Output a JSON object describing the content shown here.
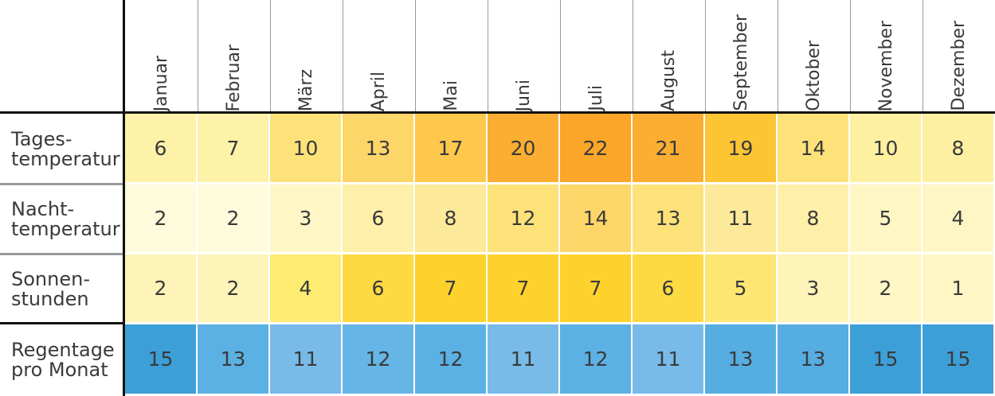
{
  "chart_data": {
    "type": "table",
    "columns": [
      "Januar",
      "Februar",
      "März",
      "April",
      "Mai",
      "Juni",
      "Juli",
      "August",
      "September",
      "Oktober",
      "November",
      "Dezember"
    ],
    "rows": [
      {
        "label": [
          "Tages-",
          "temperatur"
        ],
        "values": [
          6,
          7,
          10,
          13,
          17,
          20,
          22,
          21,
          19,
          14,
          10,
          8
        ]
      },
      {
        "label": [
          "Nacht-",
          "temperatur"
        ],
        "values": [
          2,
          2,
          3,
          6,
          8,
          12,
          14,
          13,
          11,
          8,
          5,
          4
        ]
      },
      {
        "label": [
          "Sonnen-",
          "stunden"
        ],
        "values": [
          2,
          2,
          4,
          6,
          7,
          7,
          7,
          6,
          5,
          3,
          2,
          1
        ]
      },
      {
        "label": [
          "Regentage",
          "pro Monat"
        ],
        "values": [
          15,
          13,
          11,
          12,
          12,
          11,
          12,
          11,
          13,
          13,
          15,
          15
        ]
      }
    ],
    "colors": [
      [
        "#fdf2a8",
        "#fdf2a8",
        "#fde27a",
        "#fdd66a",
        "#fdc84c",
        "#fbae32",
        "#fba628",
        "#fbae32",
        "#fdc433",
        "#fde27a",
        "#fdf0a0",
        "#fdf0a0"
      ],
      [
        "#fefadc",
        "#fefadc",
        "#fef6c4",
        "#fef0a8",
        "#fde99a",
        "#fde27a",
        "#fdd66a",
        "#fde27a",
        "#fde99a",
        "#fef0a8",
        "#fef6c4",
        "#fef6c4"
      ],
      [
        "#fef3b8",
        "#fef3b8",
        "#fdeb72",
        "#fdd942",
        "#fdd22c",
        "#fdd22c",
        "#fdd22c",
        "#fdd942",
        "#fde672",
        "#fef3b8",
        "#fef6c4",
        "#fef6c4"
      ],
      [
        "#3d9fd8",
        "#5cb1e4",
        "#78bbe8",
        "#65b5e6",
        "#5cb1e4",
        "#78bbe8",
        "#5cb1e4",
        "#78bbe8",
        "#55ade2",
        "#55ade2",
        "#3d9fd8",
        "#3d9fd8"
      ]
    ]
  }
}
